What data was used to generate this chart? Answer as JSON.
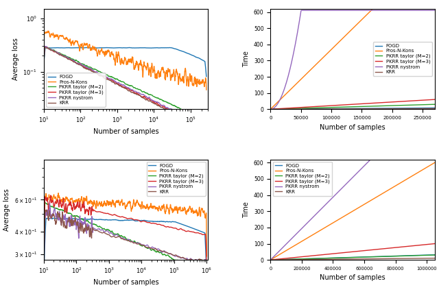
{
  "colors": {
    "FOGD": "#1f77b4",
    "Pros-N-Kons": "#ff7f0e",
    "PKRR taylor (M=2)": "#2ca02c",
    "PKRR taylor (M=3)": "#d62728",
    "PKRR nystrom": "#9467bd",
    "KRR": "#8c564b"
  },
  "legend_labels": [
    "FOGD",
    "Pros-N-Kons",
    "PKRR taylor (M=2)",
    "PKRR taylor (M=3)",
    "PKRR nystrom",
    "KRR"
  ]
}
